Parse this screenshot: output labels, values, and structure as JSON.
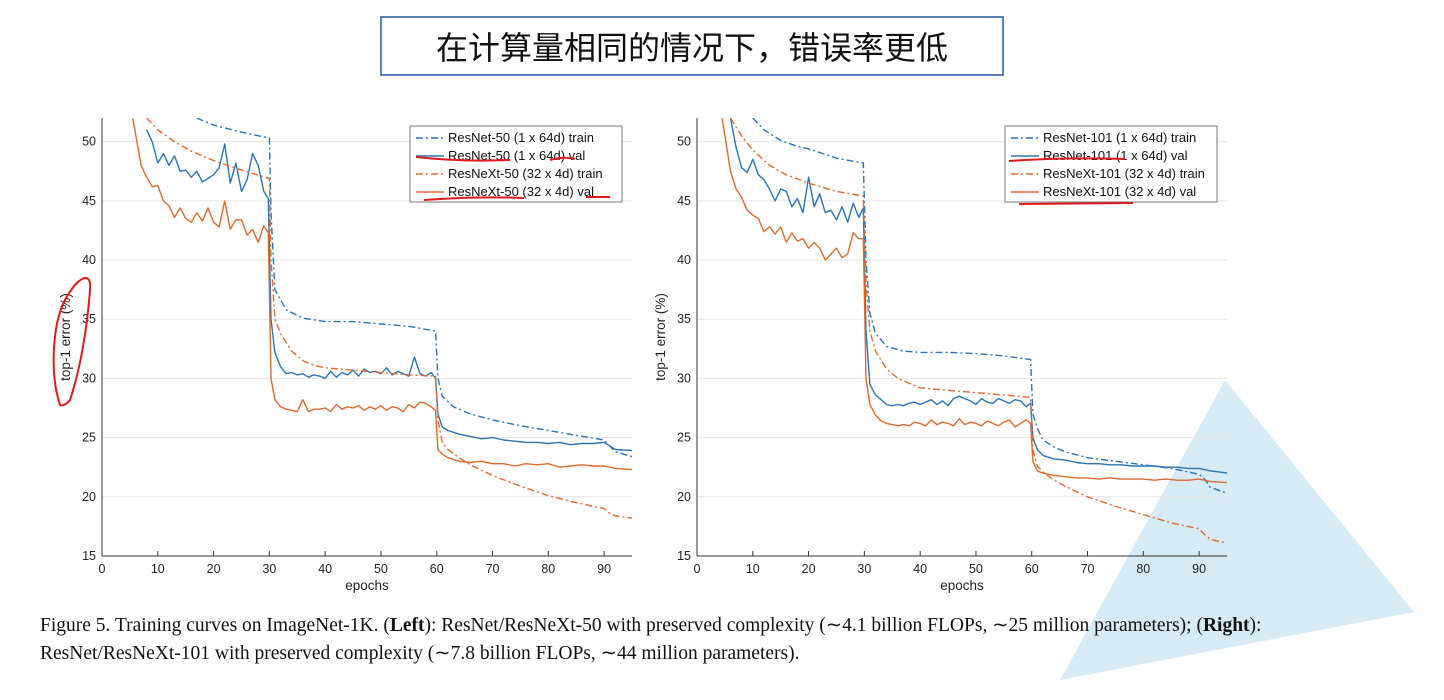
{
  "slide": {
    "title": "在计算量相同的情况下，错误率更低"
  },
  "caption": {
    "fig": "Figure 5. Training curves on ImageNet-1K. (",
    "left_bold": "Left",
    "left_text": "): ResNet/ResNeXt-50 with preserved complexity (∼4.1 billion FLOPs, ∼25 million parameters); (",
    "right_bold": "Right",
    "right_text": "): ResNet/ResNeXt-101 with preserved complexity (∼7.8 billion FLOPs, ∼44 million parameters)."
  },
  "colors": {
    "blue": "#2a74b4",
    "orange": "#dd6a2e",
    "annotation_red": "#e31a1c",
    "title_border": "#5b82b8"
  },
  "chart_data": [
    {
      "type": "line",
      "xlabel": "epochs",
      "ylabel": "top-1 error (%)",
      "xlim": [
        0,
        95
      ],
      "ylim": [
        15,
        52
      ],
      "xticks": [
        0,
        10,
        20,
        30,
        40,
        50,
        60,
        70,
        80,
        90
      ],
      "yticks": [
        15,
        20,
        25,
        30,
        35,
        40,
        45,
        50
      ],
      "grid": "y",
      "legend_position": "top-right",
      "series": [
        {
          "name": "ResNet-50 (1 x 64d) train",
          "color": "#2a74b4",
          "style": "dashdot",
          "x": [
            17,
            20,
            25,
            30,
            30.3,
            31,
            33,
            36,
            40,
            45,
            50,
            55,
            59.8,
            60.2,
            61,
            63,
            66,
            70,
            75,
            80,
            85,
            90,
            92,
            95
          ],
          "y": [
            52,
            51.4,
            50.8,
            50.3,
            44,
            37.5,
            35.8,
            35.1,
            34.8,
            34.8,
            34.6,
            34.4,
            34.0,
            30,
            28.5,
            27.6,
            27.0,
            26.5,
            26.0,
            25.6,
            25.2,
            24.8,
            23.8,
            23.4
          ]
        },
        {
          "name": "ResNet-50 (1 x 64d) val",
          "color": "#2a74b4",
          "style": "solid",
          "x": [
            8,
            9,
            10,
            11,
            12,
            13,
            14,
            15,
            16,
            17,
            18,
            19,
            20,
            21,
            22,
            23,
            24,
            25,
            26,
            27,
            28,
            29,
            29.8,
            30.3,
            31,
            32,
            33,
            34,
            35,
            36,
            37,
            38,
            39,
            40,
            41,
            42,
            43,
            44,
            45,
            46,
            47,
            48,
            49,
            50,
            51,
            52,
            53,
            54,
            55,
            56,
            57,
            58,
            59,
            59.8,
            60.2,
            61,
            62,
            64,
            66,
            68,
            70,
            72,
            74,
            76,
            78,
            80,
            82,
            84,
            86,
            88,
            90,
            92,
            95
          ],
          "y": [
            51,
            50,
            48.2,
            49.0,
            48.0,
            48.8,
            47.5,
            47.6,
            47.0,
            47.5,
            46.6,
            46.9,
            47.2,
            47.8,
            49.8,
            46.5,
            48.2,
            45.8,
            46.8,
            49.0,
            48.0,
            45.8,
            45.2,
            35,
            32.2,
            31.0,
            30.4,
            30.5,
            30.3,
            30.4,
            30.1,
            30.3,
            30.2,
            30.0,
            30.6,
            30.1,
            30.5,
            30.3,
            30.7,
            30.2,
            30.8,
            30.5,
            30.6,
            30.4,
            30.9,
            30.3,
            30.6,
            30.4,
            30.2,
            31.8,
            30.4,
            30.2,
            30.5,
            30.0,
            27,
            25.9,
            25.6,
            25.3,
            25.1,
            24.9,
            25.0,
            24.8,
            24.7,
            24.6,
            24.6,
            24.5,
            24.6,
            24.4,
            24.5,
            24.5,
            24.6,
            24.0,
            23.9
          ]
        },
        {
          "name": "ResNeXt-50 (32 x 4d) train",
          "color": "#dd6a2e",
          "style": "dashdot",
          "x": [
            8,
            10,
            13,
            16,
            20,
            25,
            30,
            30.3,
            31,
            32,
            34,
            36,
            38,
            40,
            45,
            50,
            55,
            59.8,
            60.2,
            61,
            62,
            64,
            66,
            70,
            75,
            80,
            85,
            90,
            91,
            92,
            95
          ],
          "y": [
            52,
            51.0,
            50.0,
            49.2,
            48.4,
            47.6,
            46.9,
            40,
            35.0,
            33.8,
            32.3,
            31.5,
            31.1,
            30.9,
            30.7,
            30.5,
            30.3,
            30.2,
            26.5,
            24.6,
            24.0,
            23.3,
            22.7,
            21.8,
            20.9,
            20.1,
            19.5,
            19.0,
            18.6,
            18.4,
            18.2
          ]
        },
        {
          "name": "ResNeXt-50 (32 x 4d) val",
          "color": "#dd6a2e",
          "style": "solid",
          "x": [
            5.5,
            7,
            8,
            9,
            10,
            11,
            12,
            13,
            14,
            15,
            16,
            17,
            18,
            19,
            20,
            21,
            22,
            23,
            24,
            25,
            26,
            27,
            28,
            29,
            29.8,
            30.3,
            31,
            32,
            33,
            34,
            35,
            36,
            37,
            38,
            39,
            40,
            41,
            42,
            43,
            44,
            45,
            46,
            47,
            48,
            49,
            50,
            51,
            52,
            53,
            54,
            55,
            56,
            57,
            58,
            59,
            59.8,
            60.2,
            61,
            62,
            64,
            66,
            68,
            70,
            72,
            74,
            76,
            78,
            80,
            82,
            84,
            86,
            88,
            90,
            92,
            95
          ],
          "y": [
            52,
            48.0,
            47.0,
            46.2,
            46.3,
            45.0,
            44.6,
            43.6,
            44.4,
            43.5,
            43.2,
            44.0,
            43.3,
            44.4,
            43.2,
            42.8,
            45.0,
            42.6,
            43.4,
            43.4,
            42.1,
            42.6,
            41.5,
            42.9,
            42.3,
            30,
            28.2,
            27.6,
            27.4,
            27.3,
            27.2,
            28.2,
            27.2,
            27.4,
            27.4,
            27.5,
            27.2,
            27.8,
            27.4,
            27.6,
            27.5,
            27.7,
            27.3,
            27.6,
            27.4,
            27.7,
            27.3,
            27.6,
            27.5,
            27.2,
            27.8,
            27.5,
            28.0,
            27.9,
            27.6,
            27.3,
            24,
            23.6,
            23.3,
            23.0,
            22.9,
            23.0,
            22.8,
            22.8,
            22.6,
            22.8,
            22.7,
            22.8,
            22.5,
            22.6,
            22.7,
            22.6,
            22.6,
            22.4,
            22.3
          ]
        }
      ]
    },
    {
      "type": "line",
      "xlabel": "epochs",
      "ylabel": "top-1 error (%)",
      "xlim": [
        0,
        95
      ],
      "ylim": [
        15,
        52
      ],
      "xticks": [
        0,
        10,
        20,
        30,
        40,
        50,
        60,
        70,
        80,
        90
      ],
      "yticks": [
        15,
        20,
        25,
        30,
        35,
        40,
        45,
        50
      ],
      "grid": "y",
      "legend_position": "top-right",
      "series": [
        {
          "name": "ResNet-101 (1 x 64d) train",
          "color": "#2a74b4",
          "style": "dashdot",
          "x": [
            10,
            12,
            15,
            18,
            20,
            25,
            29.8,
            30.3,
            31,
            32,
            34,
            37,
            40,
            45,
            50,
            55,
            59.8,
            60.2,
            61,
            62,
            64,
            66,
            70,
            75,
            80,
            85,
            90,
            91,
            92,
            95
          ],
          "y": [
            52,
            51.0,
            50.1,
            49.6,
            49.4,
            48.6,
            48.2,
            40,
            35.5,
            33.8,
            32.7,
            32.3,
            32.2,
            32.2,
            32.1,
            31.9,
            31.6,
            27,
            25.8,
            24.8,
            24.2,
            23.8,
            23.3,
            23.0,
            22.7,
            22.4,
            21.9,
            21.5,
            20.8,
            20.3
          ]
        },
        {
          "name": "ResNet-101 (1 x 64d) val",
          "color": "#2a74b4",
          "style": "solid",
          "x": [
            6,
            7,
            8,
            9,
            10,
            11,
            12,
            13,
            14,
            15,
            16,
            17,
            18,
            19,
            20,
            21,
            22,
            23,
            24,
            25,
            26,
            27,
            28,
            29,
            29.8,
            30.3,
            31,
            32,
            33,
            34,
            35,
            36,
            37,
            38,
            39,
            40,
            41,
            42,
            43,
            44,
            45,
            46,
            47,
            48,
            49,
            50,
            51,
            52,
            53,
            54,
            55,
            56,
            57,
            58,
            59,
            59.8,
            60.2,
            61,
            62,
            64,
            66,
            68,
            70,
            72,
            74,
            76,
            78,
            80,
            82,
            84,
            86,
            88,
            90,
            92,
            95
          ],
          "y": [
            52,
            49.5,
            47.8,
            47.4,
            48.5,
            47.2,
            46.8,
            46.0,
            45.0,
            46.0,
            45.8,
            44.5,
            45.2,
            44.0,
            47.0,
            44.5,
            45.6,
            44.0,
            44.2,
            43.4,
            44.5,
            43.2,
            44.8,
            43.6,
            44.4,
            34,
            29.5,
            28.6,
            28.2,
            27.8,
            27.7,
            27.8,
            27.7,
            27.9,
            28.0,
            27.8,
            28.0,
            28.2,
            27.8,
            28.1,
            27.7,
            28.3,
            28.5,
            28.3,
            28.1,
            27.8,
            28.3,
            28.0,
            27.9,
            28.3,
            28.1,
            27.9,
            28.2,
            28.1,
            27.6,
            27.9,
            25,
            24.0,
            23.5,
            23.2,
            23.1,
            22.9,
            22.8,
            22.8,
            22.7,
            22.7,
            22.6,
            22.6,
            22.6,
            22.5,
            22.5,
            22.4,
            22.4,
            22.2,
            22.0
          ]
        },
        {
          "name": "ResNeXt-101 (32 x 4d) train",
          "color": "#dd6a2e",
          "style": "dashdot",
          "x": [
            6,
            8,
            10,
            13,
            16,
            20,
            25,
            29.8,
            30.3,
            31,
            32,
            34,
            36,
            38,
            40,
            45,
            50,
            55,
            59.8,
            60.2,
            61,
            62,
            64,
            66,
            70,
            75,
            80,
            85,
            90,
            91,
            92,
            95
          ],
          "y": [
            52,
            50.5,
            49.3,
            48.0,
            47.2,
            46.5,
            45.8,
            45.4,
            38,
            34.0,
            32.3,
            30.8,
            30.0,
            29.6,
            29.2,
            29.0,
            28.8,
            28.6,
            28.4,
            24,
            22.6,
            22.1,
            21.4,
            20.9,
            20.0,
            19.2,
            18.5,
            17.8,
            17.3,
            16.8,
            16.4,
            16.1
          ]
        },
        {
          "name": "ResNeXt-101 (32 x 4d) val",
          "color": "#dd6a2e",
          "style": "solid",
          "x": [
            4.5,
            6,
            7,
            8,
            9,
            10,
            11,
            12,
            13,
            14,
            15,
            16,
            17,
            18,
            19,
            20,
            21,
            22,
            23,
            24,
            25,
            26,
            27,
            28,
            29,
            29.8,
            30.3,
            31,
            32,
            33,
            34,
            35,
            36,
            37,
            38,
            39,
            40,
            41,
            42,
            43,
            44,
            45,
            46,
            47,
            48,
            49,
            50,
            51,
            52,
            53,
            54,
            55,
            56,
            57,
            58,
            59,
            59.8,
            60.2,
            61,
            62,
            64,
            66,
            68,
            70,
            72,
            74,
            76,
            78,
            80,
            82,
            84,
            86,
            88,
            90,
            92,
            95
          ],
          "y": [
            52,
            47.5,
            46.0,
            45.3,
            44.2,
            43.8,
            43.5,
            42.4,
            42.8,
            42.2,
            42.8,
            41.5,
            42.3,
            41.6,
            41.8,
            41.0,
            41.5,
            41.0,
            40.0,
            40.5,
            41.0,
            40.2,
            40.5,
            42.3,
            41.8,
            41.8,
            30,
            27.8,
            26.9,
            26.4,
            26.2,
            26.1,
            26.0,
            26.1,
            26.0,
            26.3,
            26.2,
            26.0,
            26.5,
            26.1,
            26.3,
            26.2,
            26.0,
            26.6,
            26.1,
            26.3,
            26.2,
            26.0,
            26.4,
            26.2,
            26.0,
            26.3,
            26.5,
            25.9,
            26.2,
            26.5,
            26.2,
            23,
            22.2,
            22.0,
            21.8,
            21.7,
            21.6,
            21.6,
            21.5,
            21.6,
            21.5,
            21.5,
            21.5,
            21.4,
            21.5,
            21.4,
            21.4,
            21.5,
            21.3,
            21.2
          ]
        }
      ]
    }
  ]
}
